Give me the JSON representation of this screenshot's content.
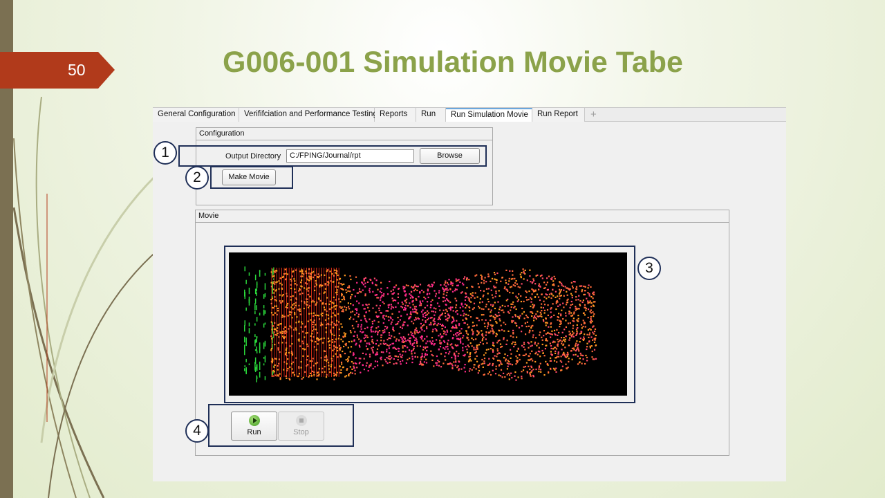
{
  "slide": {
    "number": "50",
    "title": "G006-001 Simulation Movie Tabe",
    "accent_color": "#8ba24a",
    "number_tab_color": "#b13a1b"
  },
  "app": {
    "tabs": [
      {
        "label": "General Configuration",
        "active": false
      },
      {
        "label": "Verififciation and Performance Testing",
        "active": false
      },
      {
        "label": "Reports",
        "active": false
      },
      {
        "label": "Run",
        "active": false
      },
      {
        "label": "Run Simulation Movie",
        "active": true
      },
      {
        "label": "Run Report",
        "active": false
      }
    ],
    "add_tab_label": "+",
    "configuration": {
      "title": "Configuration",
      "output_directory_label": "Output Directory",
      "output_directory_value": "C:/FPING/Journal/rpt",
      "browse_label": "Browse",
      "make_movie_label": "Make Movie"
    },
    "movie": {
      "title": "Movie",
      "run_label": "Run",
      "stop_label": "Stop"
    }
  },
  "callouts": [
    "1",
    "2",
    "3",
    "4"
  ],
  "colors": {
    "callout_border": "#1f2f57",
    "active_tab_accent": "#6aa6dc",
    "particle_colors": [
      "#ff2a8a",
      "#ff4a6a",
      "#ff6a3a",
      "#ff9a20",
      "#e03a10"
    ],
    "trace_color": "#2ad63a"
  }
}
